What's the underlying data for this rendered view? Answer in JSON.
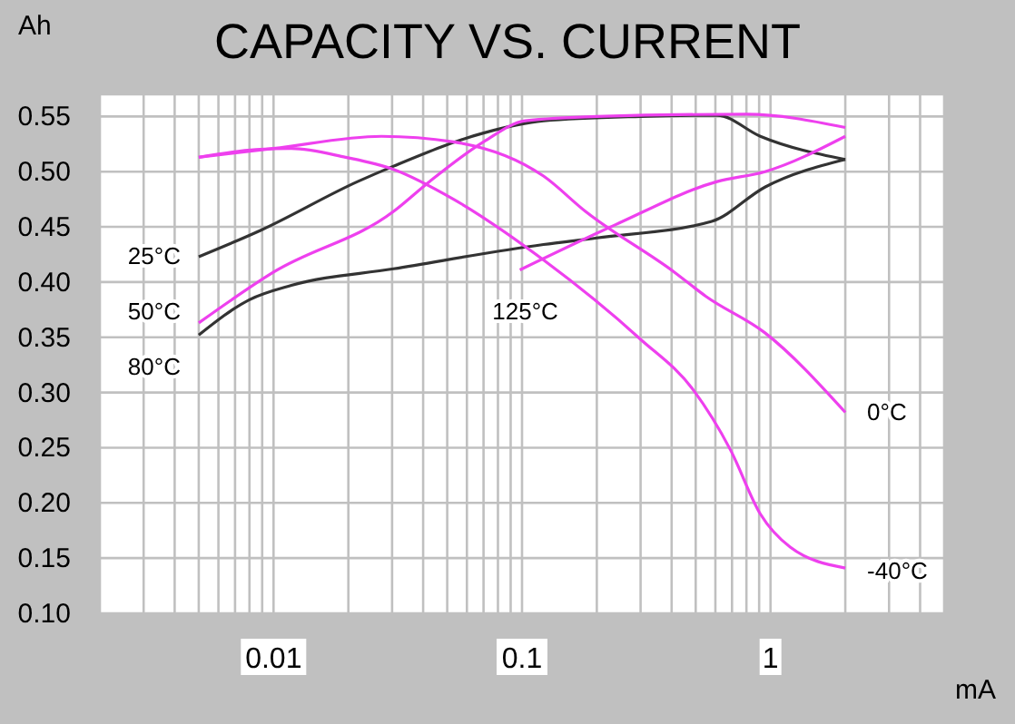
{
  "chart_data": {
    "type": "line",
    "title": "CAPACITY VS. CURRENT",
    "xlabel": "mA",
    "ylabel": "Ah",
    "log": "x",
    "grid": true,
    "marker": "none",
    "line_style": "solid",
    "xlim": [
      0.002,
      5
    ],
    "ylim": [
      0.1,
      0.57
    ],
    "xticks": [
      {
        "value": 0.002,
        "label": null
      },
      {
        "value": 0.003,
        "label": null
      },
      {
        "value": 0.004,
        "label": null
      },
      {
        "value": 0.005,
        "label": null
      },
      {
        "value": 0.006,
        "label": null
      },
      {
        "value": 0.007,
        "label": null
      },
      {
        "value": 0.008,
        "label": null
      },
      {
        "value": 0.009,
        "label": null
      },
      0.01,
      {
        "value": 0.02,
        "label": null
      },
      {
        "value": 0.03,
        "label": null
      },
      {
        "value": 0.04,
        "label": null
      },
      {
        "value": 0.05,
        "label": null
      },
      {
        "value": 0.06,
        "label": null
      },
      {
        "value": 0.07,
        "label": null
      },
      {
        "value": 0.08,
        "label": null
      },
      {
        "value": 0.09,
        "label": null
      },
      0.1,
      {
        "value": 0.2,
        "label": null
      },
      {
        "value": 0.3,
        "label": null
      },
      {
        "value": 0.4,
        "label": null
      },
      {
        "value": 0.5,
        "label": null
      },
      {
        "value": 0.6,
        "label": null
      },
      {
        "value": 0.7,
        "label": null
      },
      {
        "value": 0.8,
        "label": null
      },
      {
        "value": 0.9,
        "label": null
      },
      1,
      {
        "value": 2,
        "label": null
      },
      {
        "value": 3,
        "label": null
      },
      {
        "value": 4,
        "label": null
      },
      {
        "value": 5,
        "label": null
      }
    ],
    "yticks": [
      {
        "value": 0.1,
        "label": "0.10"
      },
      0.15,
      {
        "value": 0.2,
        "label": "0.20"
      },
      0.25,
      {
        "value": 0.3,
        "label": "0.30"
      },
      0.35,
      {
        "value": 0.4,
        "label": "0.40"
      },
      0.45,
      {
        "value": 0.5,
        "label": "0.50"
      },
      0.55
    ],
    "series": [
      {
        "name": "25°C",
        "color": "#333333",
        "x": [
          0.005,
          0.0089,
          0.0218,
          0.0304,
          0.07,
          0.122,
          0.3,
          0.61,
          0.91,
          2
        ],
        "values": [
          0.423,
          0.447,
          0.491,
          0.505,
          0.535,
          0.546,
          0.55,
          0.551,
          0.532,
          0.511
        ]
      },
      {
        "name": "50°C",
        "color": "#ee40ee",
        "x": [
          0.005,
          0.01,
          0.0304,
          0.0424,
          0.07,
          0.103,
          0.2,
          0.8,
          2
        ],
        "values": [
          0.363,
          0.409,
          0.464,
          0.491,
          0.527,
          0.546,
          0.55,
          0.552,
          0.54
        ]
      },
      {
        "name": "80°C",
        "color": "#333333",
        "x": [
          0.005,
          0.008,
          0.0118,
          0.0304,
          0.122,
          0.2,
          0.58,
          0.95,
          2
        ],
        "values": [
          0.352,
          0.384,
          0.397,
          0.412,
          0.434,
          0.44,
          0.455,
          0.486,
          0.511
        ]
      },
      {
        "name": "125°C",
        "color": "#ee40ee",
        "x": [
          0.098,
          0.238,
          0.61,
          0.95,
          2
        ],
        "values": [
          0.411,
          0.452,
          0.491,
          0.5,
          0.532
        ]
      },
      {
        "name": "0°C",
        "color": "#ee40ee",
        "x": [
          0.005,
          0.01,
          0.0272,
          0.053,
          0.122,
          0.18,
          0.41,
          0.55,
          0.95,
          2
        ],
        "values": [
          0.513,
          0.521,
          0.532,
          0.527,
          0.496,
          0.464,
          0.409,
          0.387,
          0.354,
          0.282
        ]
      },
      {
        "name": "-40°C",
        "color": "#ee40ee",
        "x": [
          0.005,
          0.0085,
          0.0118,
          0.0195,
          0.0304,
          0.053,
          0.122,
          0.297,
          0.49,
          0.69,
          0.91,
          1.2,
          2
        ],
        "values": [
          0.513,
          0.52,
          0.521,
          0.513,
          0.502,
          0.475,
          0.42,
          0.349,
          0.302,
          0.248,
          0.19,
          0.16,
          0.141
        ]
      }
    ]
  }
}
